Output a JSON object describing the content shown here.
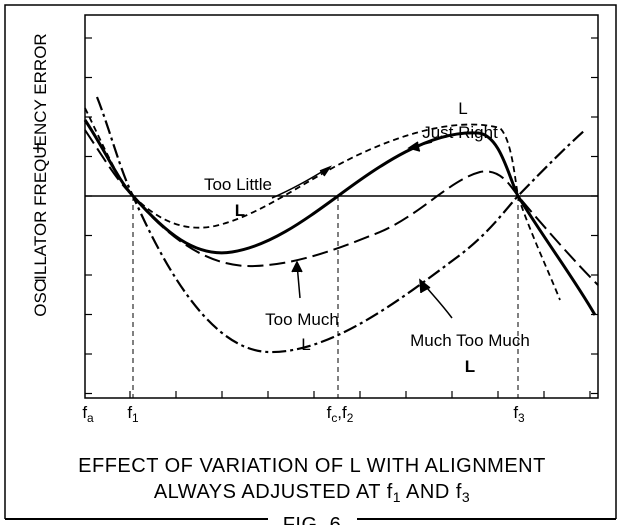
{
  "y_axis": {
    "label": "OSCILLATOR FREQUENCY ERROR",
    "plus": "+",
    "minus": "−"
  },
  "x_labels": [
    [
      "f",
      "a"
    ],
    [
      "f",
      "1"
    ],
    [
      "f",
      "c",
      ",f",
      "2"
    ],
    [
      "f",
      "3"
    ]
  ],
  "curves": {
    "too_little": [
      "Too Little",
      "L"
    ],
    "just_right": [
      "L",
      "Just Right"
    ],
    "too_much": [
      "Too Much",
      "L"
    ],
    "much_too_much": [
      "Much Too Much",
      "L"
    ]
  },
  "caption": {
    "line1": "EFFECT OF VARIATION OF L WITH ALIGNMENT",
    "line2": [
      "ALWAYS ADJUSTED AT f",
      "1",
      " AND f",
      "3"
    ]
  },
  "figure": "FIG. 6"
}
